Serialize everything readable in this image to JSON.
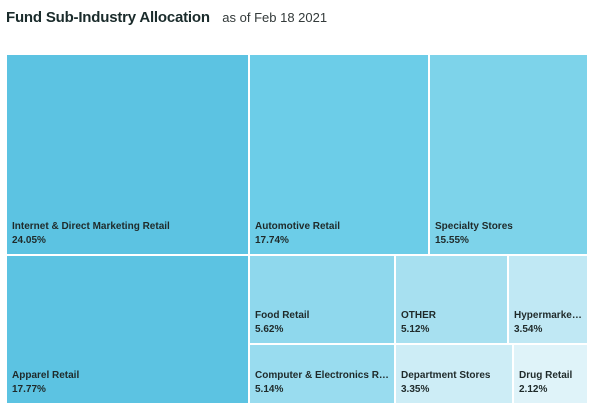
{
  "header": {
    "title": "Fund Sub-Industry Allocation",
    "subtitle": "as of Feb 18 2021"
  },
  "chart_data": {
    "type": "treemap",
    "title": "Fund Sub-Industry Allocation",
    "subtitle": "as of Feb 18 2021",
    "items": [
      {
        "label": "Internet & Direct Marketing Retail",
        "value": 24.05,
        "display": "24.05%",
        "color": "#5cc3e2"
      },
      {
        "label": "Apparel Retail",
        "value": 17.77,
        "display": "17.77%",
        "color": "#5cc3e2"
      },
      {
        "label": "Automotive Retail",
        "value": 17.74,
        "display": "17.74%",
        "color": "#6ccde8"
      },
      {
        "label": "Specialty Stores",
        "value": 15.55,
        "display": "15.55%",
        "color": "#7dd3ea"
      },
      {
        "label": "Food Retail",
        "value": 5.62,
        "display": "5.62%",
        "color": "#8fd8ed"
      },
      {
        "label": "Computer & Electronics Re...",
        "value": 5.14,
        "display": "5.14%",
        "color": "#99dcef"
      },
      {
        "label": "OTHER",
        "value": 5.12,
        "display": "5.12%",
        "color": "#a7e0f0"
      },
      {
        "label": "Hypermarket...",
        "value": 3.54,
        "display": "3.54%",
        "color": "#c0e8f4"
      },
      {
        "label": "Department Stores",
        "value": 3.35,
        "display": "3.35%",
        "color": "#cdedf6"
      },
      {
        "label": "Drug Retail",
        "value": 2.12,
        "display": "2.12%",
        "color": "#dff3f9"
      }
    ]
  }
}
